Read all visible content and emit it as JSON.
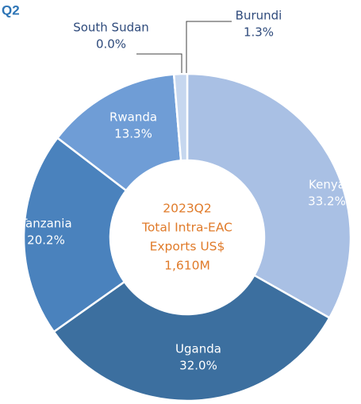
{
  "chart_data": {
    "type": "donut",
    "title": "Q2",
    "center_text": [
      "2023Q2",
      "Total Intra-EAC",
      "Exports US$",
      "1,610M"
    ],
    "categories": [
      "Kenya",
      "Uganda",
      "Tanzania",
      "Rwanda",
      "South Sudan",
      "Burundi"
    ],
    "values": [
      33.2,
      32.0,
      20.2,
      13.3,
      0.0,
      1.3
    ],
    "value_labels": [
      "33.2%",
      "32.0%",
      "20.2%",
      "13.3%",
      "0.0%",
      "1.3%"
    ],
    "colors": [
      "#a9c0e4",
      "#3c6f9f",
      "#4a82bd",
      "#6f9dd6",
      "#8fb1df",
      "#c6d7ef"
    ]
  }
}
